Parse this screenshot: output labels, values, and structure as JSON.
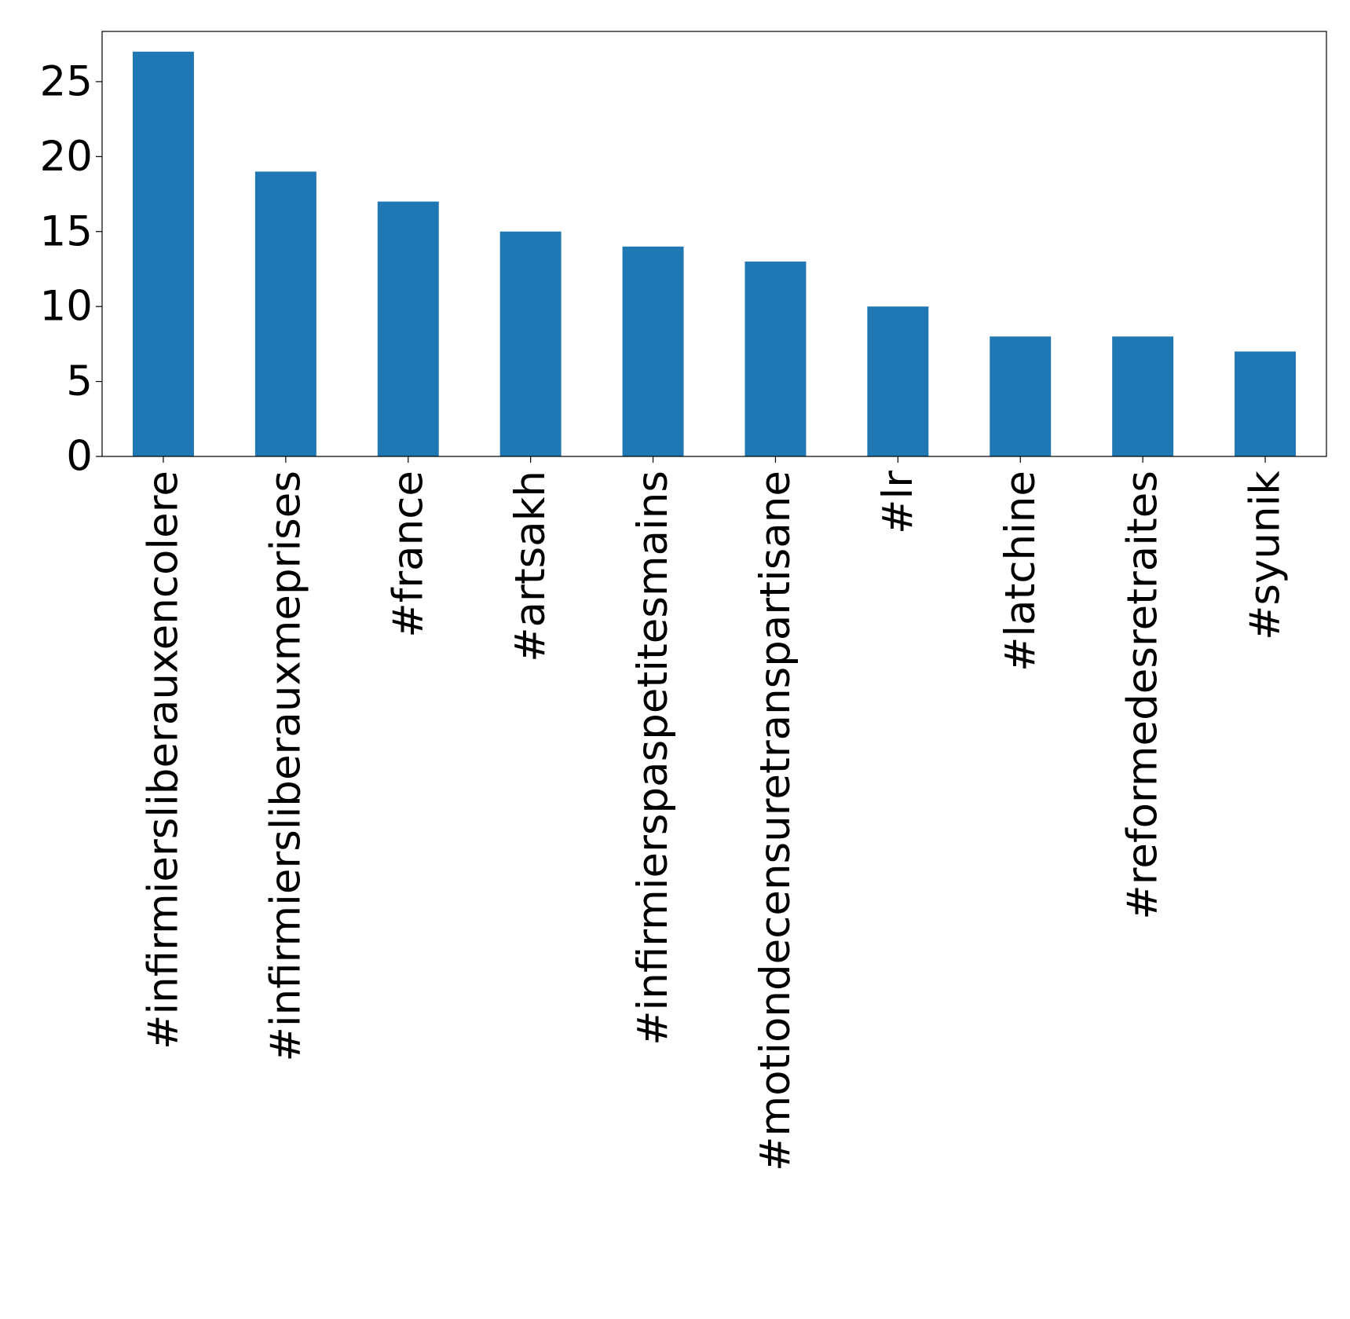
{
  "chart_data": {
    "type": "bar",
    "title": "",
    "xlabel": "",
    "ylabel": "",
    "categories": [
      "#infirmiersliberauxencolere",
      "#infirmiersliberauxmeprises",
      "#france",
      "#artsakh",
      "#infirmierspaspetitesmains",
      "#motiondecensuretranspartisane",
      "#lr",
      "#latchine",
      "#reformedesretraites",
      "#syunik"
    ],
    "values": [
      27,
      19,
      17,
      15,
      14,
      13,
      10,
      8,
      8,
      7
    ],
    "ylim": [
      0,
      28.35
    ],
    "yticks": [
      "0",
      "5",
      "10",
      "15",
      "20",
      "25"
    ],
    "grid": false,
    "legend": "none",
    "bar_color": "#1f77b4"
  }
}
